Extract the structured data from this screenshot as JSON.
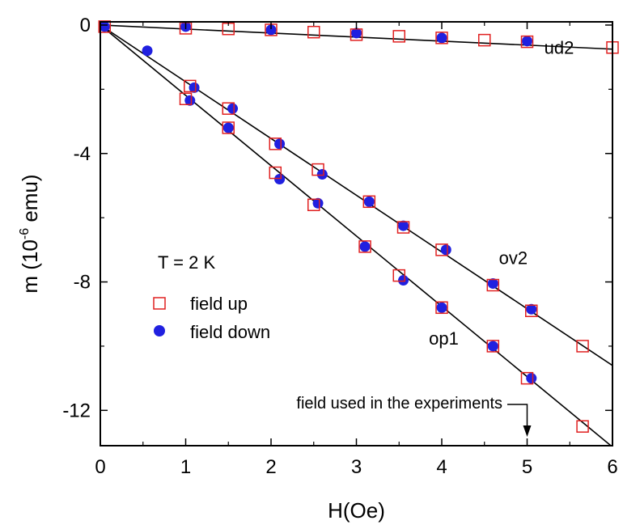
{
  "chart_data": {
    "type": "scatter",
    "title": "",
    "xlabel": "H(Oe)",
    "ylabel": {
      "prefix": "m (10",
      "superscript": "-6",
      "suffix": " emu)"
    },
    "xlim": [
      0,
      6
    ],
    "ylim": [
      -13.1,
      0.1
    ],
    "xticks": [
      0,
      1,
      2,
      3,
      4,
      5,
      6
    ],
    "yticks": [
      0,
      -4,
      -8,
      -12
    ],
    "grid": false,
    "legend_position": "left",
    "annotation_temperature": "T = 2 K",
    "annotation_field": "field used in the experiments",
    "annotation_field_x": 5,
    "series": [
      {
        "name": "field up",
        "marker": "open-square",
        "color": "#e02020",
        "points": [
          [
            0.05,
            -0.05
          ],
          [
            1.0,
            -0.1
          ],
          [
            1.5,
            -0.12
          ],
          [
            2.0,
            -0.15
          ],
          [
            2.5,
            -0.22
          ],
          [
            3.0,
            -0.3
          ],
          [
            3.5,
            -0.35
          ],
          [
            4.0,
            -0.4
          ],
          [
            4.5,
            -0.47
          ],
          [
            5.0,
            -0.52
          ],
          [
            6.0,
            -0.7
          ],
          [
            1.05,
            -1.9
          ],
          [
            1.5,
            -2.6
          ],
          [
            2.05,
            -3.7
          ],
          [
            2.55,
            -4.5
          ],
          [
            3.15,
            -5.5
          ],
          [
            3.55,
            -6.3
          ],
          [
            4.0,
            -7.0
          ],
          [
            4.6,
            -8.1
          ],
          [
            5.05,
            -8.9
          ],
          [
            5.65,
            -10.0
          ],
          [
            1.0,
            -2.3
          ],
          [
            1.5,
            -3.2
          ],
          [
            2.05,
            -4.6
          ],
          [
            2.5,
            -5.6
          ],
          [
            3.1,
            -6.9
          ],
          [
            3.5,
            -7.8
          ],
          [
            4.0,
            -8.8
          ],
          [
            4.6,
            -10.0
          ],
          [
            5.0,
            -11.0
          ],
          [
            5.65,
            -12.5
          ]
        ]
      },
      {
        "name": "field down",
        "marker": "filled-circle",
        "color": "#2020e0",
        "points": [
          [
            0.05,
            -0.05
          ],
          [
            1.0,
            -0.05
          ],
          [
            2.0,
            -0.15
          ],
          [
            3.0,
            -0.25
          ],
          [
            4.0,
            -0.4
          ],
          [
            5.0,
            -0.5
          ],
          [
            0.55,
            -0.8
          ],
          [
            1.1,
            -1.95
          ],
          [
            1.55,
            -2.6
          ],
          [
            2.1,
            -3.7
          ],
          [
            2.6,
            -4.65
          ],
          [
            3.15,
            -5.5
          ],
          [
            3.55,
            -6.25
          ],
          [
            4.05,
            -7.0
          ],
          [
            4.6,
            -8.05
          ],
          [
            5.05,
            -8.85
          ],
          [
            1.05,
            -2.35
          ],
          [
            1.5,
            -3.2
          ],
          [
            2.1,
            -4.8
          ],
          [
            2.55,
            -5.55
          ],
          [
            3.1,
            -6.9
          ],
          [
            3.55,
            -7.95
          ],
          [
            4.0,
            -8.8
          ],
          [
            4.6,
            -10.0
          ],
          [
            5.05,
            -11.0
          ]
        ]
      }
    ],
    "fit_lines": [
      {
        "name": "ud2",
        "slope": -0.125,
        "intercept": 0,
        "label_at": [
          5.2,
          -0.9
        ]
      },
      {
        "name": "ov2",
        "slope": -1.767,
        "intercept": 0,
        "label_at": [
          4.67,
          -7.45
        ]
      },
      {
        "name": "op1",
        "slope": -2.19,
        "intercept": 0,
        "label_at": [
          3.85,
          -9.95
        ]
      }
    ]
  }
}
